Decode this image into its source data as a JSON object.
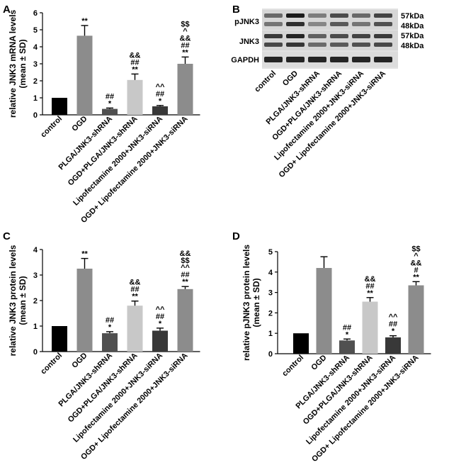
{
  "chart_data": [
    {
      "panel": "A",
      "type": "bar",
      "ylabel": "relative JNK3 mRNA levels",
      "ylabel2": "(mean ± SD)",
      "ylim": [
        0,
        6
      ],
      "yticks": [
        0,
        1,
        2,
        3,
        4,
        5,
        6
      ],
      "categories": [
        "control",
        "OGD",
        "PLGA/JNK3-shRNA",
        "OGD+PLGA/JNK3-shRNA",
        "Lipofectamine 2000+JNK3-siRNA",
        "OGD+ Lipofectamine 2000+JNK3-siRNA"
      ],
      "values": [
        1.0,
        4.65,
        0.35,
        2.05,
        0.5,
        3.0
      ],
      "errors": [
        0,
        0.6,
        0.05,
        0.35,
        0.05,
        0.4
      ],
      "colors": [
        "#000000",
        "#8c8c8c",
        "#505050",
        "#c8c8c8",
        "#383838",
        "#8c8c8c"
      ],
      "annotations": [
        [],
        [
          "**"
        ],
        [
          "##",
          "*"
        ],
        [
          "&&",
          "##",
          "**"
        ],
        [
          "^^",
          "##",
          "*"
        ],
        [
          "$$",
          "^",
          "&&",
          "##",
          "**"
        ]
      ]
    },
    {
      "panel": "C",
      "type": "bar",
      "ylabel": "relative JNK3 protein levels",
      "ylabel2": "(mean ± SD)",
      "ylim": [
        0,
        4
      ],
      "yticks": [
        0,
        1,
        2,
        3,
        4
      ],
      "categories": [
        "control",
        "OGD",
        "PLGA/JNK3-shRNA",
        "OGD+PLGA/JNK3-shRNA",
        "Lipofectamine 2000+JNK3-siRNA",
        "OGD+ Lipofectamine 2000+JNK3-siRNA"
      ],
      "values": [
        1.0,
        3.25,
        0.72,
        1.8,
        0.82,
        2.45
      ],
      "errors": [
        0,
        0.4,
        0.06,
        0.18,
        0.1,
        0.1
      ],
      "colors": [
        "#000000",
        "#8c8c8c",
        "#505050",
        "#c8c8c8",
        "#383838",
        "#8c8c8c"
      ],
      "annotations": [
        [],
        [
          "**"
        ],
        [
          "##",
          "*"
        ],
        [
          "&&",
          "##",
          "**"
        ],
        [
          "^^",
          "##",
          "*"
        ],
        [
          "&&",
          "$$",
          "^^",
          "##",
          "**"
        ]
      ]
    },
    {
      "panel": "D",
      "type": "bar",
      "ylabel": "relative pJNK3 protein levels",
      "ylabel2": "(mean ± SD)",
      "ylim": [
        0,
        5
      ],
      "yticks": [
        0,
        1,
        2,
        3,
        4,
        5
      ],
      "categories": [
        "control",
        "OGD",
        "PLGA/JNK3-shRNA",
        "OGD+PLGA/JNK3-shRNA",
        "Lipofectamine 2000+JNK3-siRNA",
        "OGD+ Lipofectamine 2000+JNK3-siRNA"
      ],
      "values": [
        1.0,
        4.2,
        0.65,
        2.55,
        0.8,
        3.35
      ],
      "errors": [
        0,
        0.55,
        0.07,
        0.2,
        0.08,
        0.18
      ],
      "colors": [
        "#000000",
        "#8c8c8c",
        "#505050",
        "#c8c8c8",
        "#383838",
        "#8c8c8c"
      ],
      "annotations": [
        [],
        [],
        [
          "##",
          "*"
        ],
        [
          "&&",
          "##",
          "**"
        ],
        [
          "^^",
          "##",
          "*"
        ],
        [
          "$$",
          "^",
          "&&",
          "#",
          "**"
        ]
      ]
    }
  ],
  "panel_labels": [
    "A",
    "B",
    "C",
    "D"
  ],
  "blot": {
    "rows": [
      "pJNK3",
      "JNK3",
      "GAPDH"
    ],
    "markers": [
      "57kDa",
      "48kDa",
      "57kDa",
      "48kDa"
    ],
    "lanes": [
      "control",
      "OGD",
      "PLGA/JNK3-shRNA",
      "OGD+PLGA/JNK3-shRNA",
      "Lipofectamine 2000+JNK3-siRNA",
      "OGD+ Lipofectamine 2000+JNK3-siRNA"
    ]
  }
}
